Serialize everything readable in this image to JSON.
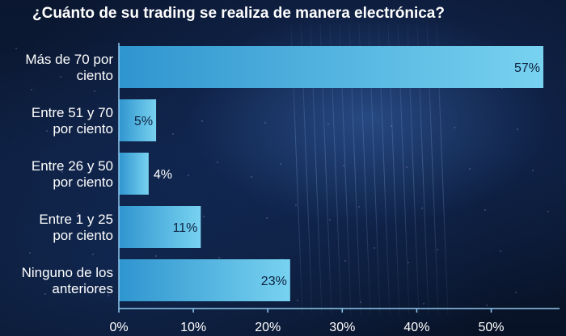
{
  "chart_data": {
    "type": "bar",
    "orientation": "horizontal",
    "title": "¿Cuánto de su trading se realiza de manera electrónica?",
    "categories": [
      [
        "Más de 70 por",
        "ciento"
      ],
      [
        "Entre 51 y 70",
        "por ciento"
      ],
      [
        "Entre 26 y 50",
        "por ciento"
      ],
      [
        "Entre 1 y 25",
        "por ciento"
      ],
      [
        "Ninguno de los",
        "anteriores"
      ]
    ],
    "values": [
      57,
      5,
      4,
      11,
      23
    ],
    "value_labels": [
      "57%",
      "5%",
      "4%",
      "11%",
      "23%"
    ],
    "xlim": [
      0,
      57
    ],
    "x_ticks": [
      "0%",
      "10%",
      "20%",
      "30%",
      "40%",
      "50%"
    ],
    "x_tick_values": [
      0,
      10,
      20,
      30,
      40,
      50
    ],
    "grid": false,
    "legend": "none",
    "colors": {
      "bar_light": "#74cfee",
      "bar_dark": "#1e7fc0",
      "axis": "#8ec8ee"
    }
  }
}
